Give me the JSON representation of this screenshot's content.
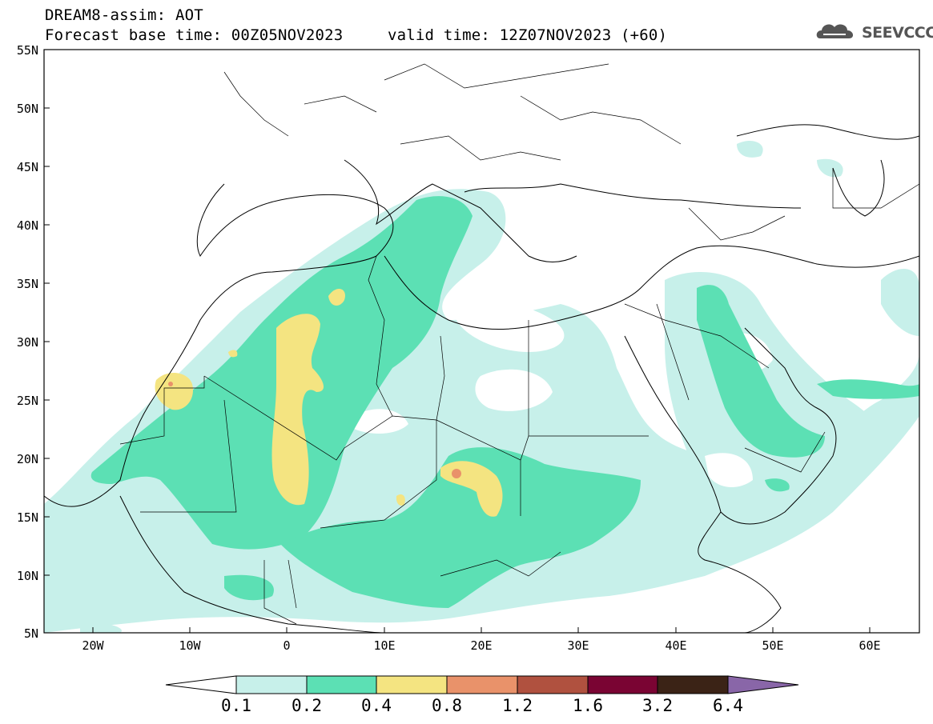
{
  "title": {
    "model": "DREAM8-assim: AOT",
    "base_time": "Forecast base time: 00Z05NOV2023",
    "valid_time": "valid time: 12Z07NOV2023 (+60)"
  },
  "logo": {
    "text": "SEEVCCC",
    "icon": "cloud-icon"
  },
  "map": {
    "lat_labels": [
      "55N",
      "50N",
      "45N",
      "40N",
      "35N",
      "30N",
      "25N",
      "20N",
      "15N",
      "10N",
      "5N"
    ],
    "lon_labels": [
      "20W",
      "10W",
      "0",
      "10E",
      "20E",
      "30E",
      "40E",
      "50E",
      "60E"
    ],
    "extent": {
      "lon": [
        -25,
        65
      ],
      "lat": [
        5,
        55
      ]
    }
  },
  "legend": {
    "labels": [
      "0.1",
      "0.2",
      "0.4",
      "0.8",
      "1.2",
      "1.6",
      "3.2",
      "6.4"
    ],
    "colors": [
      "#ffffff",
      "#c7f0ea",
      "#5ce0b4",
      "#f4e481",
      "#e9926a",
      "#b0513f",
      "#7a0433",
      "#3b2316",
      "#8966a8"
    ]
  }
}
